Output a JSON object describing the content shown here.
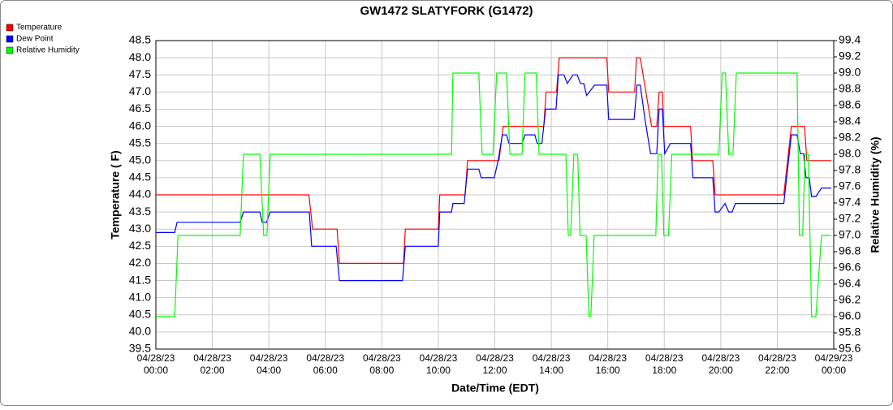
{
  "chart_data": {
    "type": "line",
    "title": "GW1472 SLATYFORK (G1472)",
    "x_label": "Date/Time (EDT)",
    "y_label": "Temperature ( F)",
    "y2_label": "Relative Humidity (%)",
    "legend": "top-left",
    "grid": true,
    "xlim": [
      "04/28/23 00:00",
      "04/29/23 00:00"
    ],
    "xticks": [
      {
        "value": "04/28/23 00:00",
        "label": [
          "04/28/23",
          "00:00"
        ]
      },
      {
        "value": "04/28/23 02:00",
        "label": [
          "04/28/23",
          "02:00"
        ]
      },
      {
        "value": "04/28/23 04:00",
        "label": [
          "04/28/23",
          "04:00"
        ]
      },
      {
        "value": "04/28/23 06:00",
        "label": [
          "04/28/23",
          "06:00"
        ]
      },
      {
        "value": "04/28/23 08:00",
        "label": [
          "04/28/23",
          "08:00"
        ]
      },
      {
        "value": "04/28/23 10:00",
        "label": [
          "04/28/23",
          "10:00"
        ]
      },
      {
        "value": "04/28/23 12:00",
        "label": [
          "04/28/23",
          "12:00"
        ]
      },
      {
        "value": "04/28/23 14:00",
        "label": [
          "04/28/23",
          "14:00"
        ]
      },
      {
        "value": "04/28/23 16:00",
        "label": [
          "04/28/23",
          "16:00"
        ]
      },
      {
        "value": "04/28/23 18:00",
        "label": [
          "04/28/23",
          "18:00"
        ]
      },
      {
        "value": "04/28/23 20:00",
        "label": [
          "04/28/23",
          "20:00"
        ]
      },
      {
        "value": "04/28/23 22:00",
        "label": [
          "04/28/23",
          "22:00"
        ]
      },
      {
        "value": "04/29/23 00:00",
        "label": [
          "04/29/23",
          "00:00"
        ]
      }
    ],
    "ylim": [
      39.5,
      48.5
    ],
    "yticks": [
      39.5,
      {
        "value": 40,
        "label": "40.0"
      },
      40.5,
      {
        "value": 41,
        "label": "41.0"
      },
      41.5,
      {
        "value": 42,
        "label": "42.0"
      },
      42.5,
      {
        "value": 43,
        "label": "43.0"
      },
      43.5,
      {
        "value": 44,
        "label": "44.0"
      },
      44.5,
      {
        "value": 45,
        "label": "45.0"
      },
      45.5,
      {
        "value": 46,
        "label": "46.0"
      },
      46.5,
      {
        "value": 47,
        "label": "47.0"
      },
      47.5,
      {
        "value": 48,
        "label": "48.0"
      },
      48.5
    ],
    "y2lim": [
      95.6,
      99.4
    ],
    "y2ticks": [
      95.6,
      95.8,
      {
        "value": 96,
        "label": "96.0"
      },
      96.2,
      96.4,
      96.6,
      96.8,
      {
        "value": 97,
        "label": "97.0"
      },
      97.2,
      97.4,
      97.6,
      97.8,
      {
        "value": 98,
        "label": "98.0"
      },
      98.2,
      98.4,
      98.6,
      98.8,
      {
        "value": 99,
        "label": "99.0"
      },
      99.2,
      99.4
    ],
    "series": [
      {
        "name": "Temperature",
        "color": "#ff0000",
        "x": [
          "04/28/23 00:00",
          "04/28/23 05:25",
          "04/28/23 05:33",
          "04/28/23 06:25",
          "04/28/23 06:30",
          "04/28/23 08:46",
          "04/28/23 08:50",
          "04/28/23 10:00",
          "04/28/23 10:03",
          "04/28/23 10:57",
          "04/28/23 11:02",
          "04/28/23 12:09",
          "04/28/23 12:18",
          "04/28/23 13:44",
          "04/28/23 13:49",
          "04/28/23 14:11",
          "04/28/23 14:17",
          "04/28/23 15:58",
          "04/28/23 16:02",
          "04/28/23 16:57",
          "04/28/23 17:01",
          "04/28/23 17:09",
          "04/28/23 17:33",
          "04/28/23 17:44",
          "04/28/23 17:49",
          "04/28/23 17:56",
          "04/28/23 17:59",
          "04/28/23 18:56",
          "04/28/23 19:00",
          "04/28/23 19:43",
          "04/28/23 19:48",
          "04/28/23 22:14",
          "04/28/23 22:30",
          "04/28/23 22:58",
          "04/28/23 23:03",
          "04/28/23 23:55"
        ],
        "values": [
          44,
          44,
          43,
          43,
          42,
          42,
          43,
          43,
          44,
          44,
          45,
          45,
          46,
          46,
          47,
          47,
          48,
          48,
          47,
          47,
          48,
          48,
          46,
          46,
          47,
          47,
          46,
          46,
          45,
          45,
          44,
          44,
          46,
          46,
          45,
          45
        ]
      },
      {
        "name": "Dew Point",
        "color": "#0000ff",
        "x": [
          "04/28/23 00:00",
          "04/28/23 00:40",
          "04/28/23 00:45",
          "04/28/23 02:59",
          "04/28/23 03:06",
          "04/28/23 03:41",
          "04/28/23 03:46",
          "04/28/23 03:55",
          "04/28/23 04:03",
          "04/28/23 05:26",
          "04/28/23 05:31",
          "04/28/23 06:23",
          "04/28/23 06:30",
          "04/28/23 08:44",
          "04/28/23 08:50",
          "04/28/23 10:00",
          "04/28/23 10:03",
          "04/28/23 10:28",
          "04/28/23 10:31",
          "04/28/23 10:55",
          "04/28/23 11:02",
          "04/28/23 11:26",
          "04/28/23 11:31",
          "04/28/23 11:59",
          "04/28/23 12:07",
          "04/28/23 12:16",
          "04/28/23 12:25",
          "04/28/23 12:30",
          "04/28/23 12:58",
          "04/28/23 13:04",
          "04/28/23 13:25",
          "04/28/23 13:30",
          "04/28/23 13:40",
          "04/28/23 13:48",
          "04/28/23 14:10",
          "04/28/23 14:15",
          "04/28/23 14:27",
          "04/28/23 14:34",
          "04/28/23 14:46",
          "04/28/23 14:55",
          "04/28/23 15:02",
          "04/28/23 15:09",
          "04/28/23 15:15",
          "04/28/23 15:32",
          "04/28/23 15:58",
          "04/28/23 16:02",
          "04/28/23 16:56",
          "04/28/23 17:02",
          "04/28/23 17:09",
          "04/28/23 17:19",
          "04/28/23 17:31",
          "04/28/23 17:44",
          "04/28/23 17:49",
          "04/28/23 17:56",
          "04/28/23 18:01",
          "04/28/23 18:13",
          "04/28/23 18:56",
          "04/28/23 19:01",
          "04/28/23 19:43",
          "04/28/23 19:48",
          "04/28/23 19:56",
          "04/28/23 20:09",
          "04/28/23 20:17",
          "04/28/23 20:24",
          "04/28/23 20:31",
          "04/28/23 22:14",
          "04/28/23 22:30",
          "04/28/23 22:42",
          "04/28/23 22:49",
          "04/28/23 22:56",
          "04/28/23 23:01",
          "04/28/23 23:08",
          "04/28/23 23:13",
          "04/28/23 23:22",
          "04/28/23 23:34",
          "04/28/23 23:55"
        ],
        "values": [
          42.9,
          42.9,
          43.2,
          43.2,
          43.5,
          43.5,
          43.2,
          43.2,
          43.5,
          43.5,
          42.5,
          42.5,
          41.5,
          41.5,
          42.5,
          42.5,
          43.5,
          43.5,
          43.75,
          43.75,
          44.75,
          44.75,
          44.5,
          44.5,
          45.0,
          45.75,
          45.75,
          45.5,
          45.5,
          45.75,
          45.75,
          45.5,
          45.5,
          46.5,
          46.5,
          47.5,
          47.5,
          47.25,
          47.5,
          47.5,
          47.25,
          47.25,
          46.9,
          47.2,
          47.2,
          46.2,
          46.2,
          47.2,
          47.2,
          46.2,
          45.2,
          45.2,
          46.5,
          46.5,
          45.2,
          45.5,
          45.5,
          44.5,
          44.5,
          43.5,
          43.5,
          43.75,
          43.5,
          43.5,
          43.75,
          43.75,
          45.75,
          45.75,
          45.2,
          45.2,
          44.5,
          44.5,
          43.95,
          43.95,
          44.2,
          44.2
        ]
      },
      {
        "name": "Relative Humidity",
        "color": "#00ff00",
        "axis": "y2",
        "x": [
          "04/28/23 00:00",
          "04/28/23 00:40",
          "04/28/23 00:47",
          "04/28/23 02:59",
          "04/28/23 03:06",
          "04/28/23 03:41",
          "04/28/23 03:49",
          "04/28/23 03:56",
          "04/28/23 04:03",
          "04/28/23 10:28",
          "04/28/23 10:31",
          "04/28/23 11:26",
          "04/28/23 11:33",
          "04/28/23 11:56",
          "04/28/23 12:04",
          "04/28/23 12:25",
          "04/28/23 12:32",
          "04/28/23 12:58",
          "04/28/23 13:04",
          "04/28/23 13:28",
          "04/28/23 13:34",
          "04/28/23 14:31",
          "04/28/23 14:36",
          "04/28/23 14:41",
          "04/28/23 14:48",
          "04/28/23 14:56",
          "04/28/23 15:01",
          "04/28/23 15:14",
          "04/28/23 15:20",
          "04/28/23 15:24",
          "04/28/23 15:31",
          "04/28/23 17:42",
          "04/28/23 17:47",
          "04/28/23 17:54",
          "04/28/23 17:59",
          "04/28/23 18:09",
          "04/28/23 18:16",
          "04/28/23 19:56",
          "04/28/23 20:03",
          "04/28/23 20:10",
          "04/28/23 20:17",
          "04/28/23 20:26",
          "04/28/23 20:33",
          "04/28/23 22:42",
          "04/28/23 22:47",
          "04/28/23 22:54",
          "04/28/23 22:59",
          "04/28/23 23:06",
          "04/28/23 23:13",
          "04/28/23 23:22",
          "04/28/23 23:34",
          "04/28/23 23:55"
        ],
        "values": [
          96,
          96,
          97,
          97,
          98,
          98,
          97,
          97,
          98,
          98,
          99,
          99,
          98,
          98,
          99,
          99,
          98,
          98,
          99,
          99,
          98,
          98,
          97,
          97,
          98,
          98,
          97,
          97,
          96,
          96,
          97,
          97,
          98,
          98,
          97,
          97,
          98,
          98,
          99,
          99,
          98,
          98,
          99,
          99,
          97,
          97,
          98,
          98,
          96,
          96,
          97,
          97
        ]
      }
    ]
  }
}
